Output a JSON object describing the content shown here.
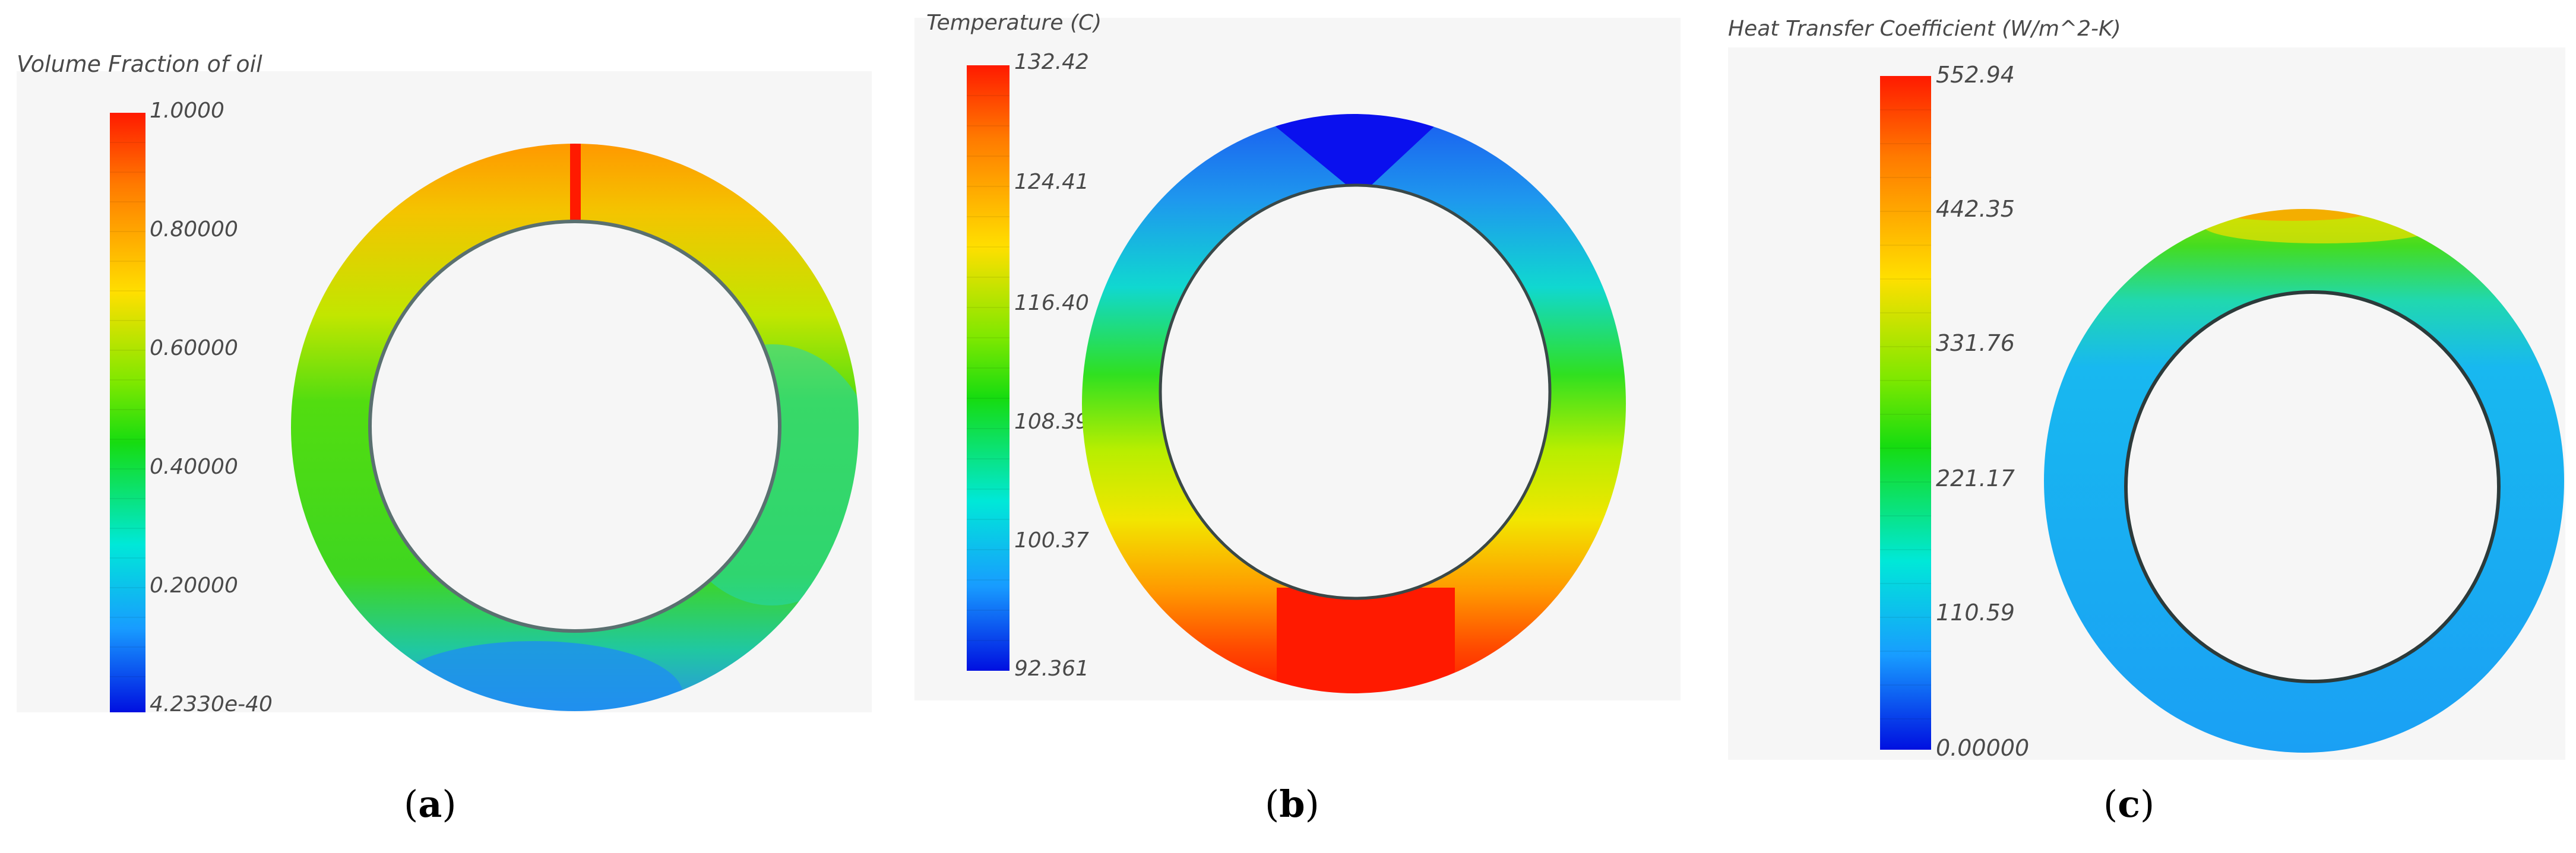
{
  "panels": [
    {
      "id": "a",
      "caption_letter": "a",
      "colorbar_title": "Volume Fraction of oil",
      "ticks": [
        "1.0000",
        "0.80000",
        "0.60000",
        "0.40000",
        "0.20000",
        "4.2330e-40"
      ]
    },
    {
      "id": "b",
      "caption_letter": "b",
      "colorbar_title": "Temperature (C)",
      "ticks": [
        "132.42",
        "124.41",
        "116.40",
        "108.39",
        "100.37",
        "92.361"
      ]
    },
    {
      "id": "c",
      "caption_letter": "c",
      "colorbar_title": "Heat Transfer Coefficient (W/m^2-K)",
      "ticks": [
        "552.94",
        "442.35",
        "331.76",
        "221.17",
        "110.59",
        "0.00000"
      ]
    }
  ],
  "colors": {
    "red": "#ff1a00",
    "orange": "#ff8a00",
    "yellow": "#f2f200",
    "green": "#22dd00",
    "cyan": "#00eeee",
    "blue": "#1a6cff",
    "dark_blue": "#0000ee"
  }
}
